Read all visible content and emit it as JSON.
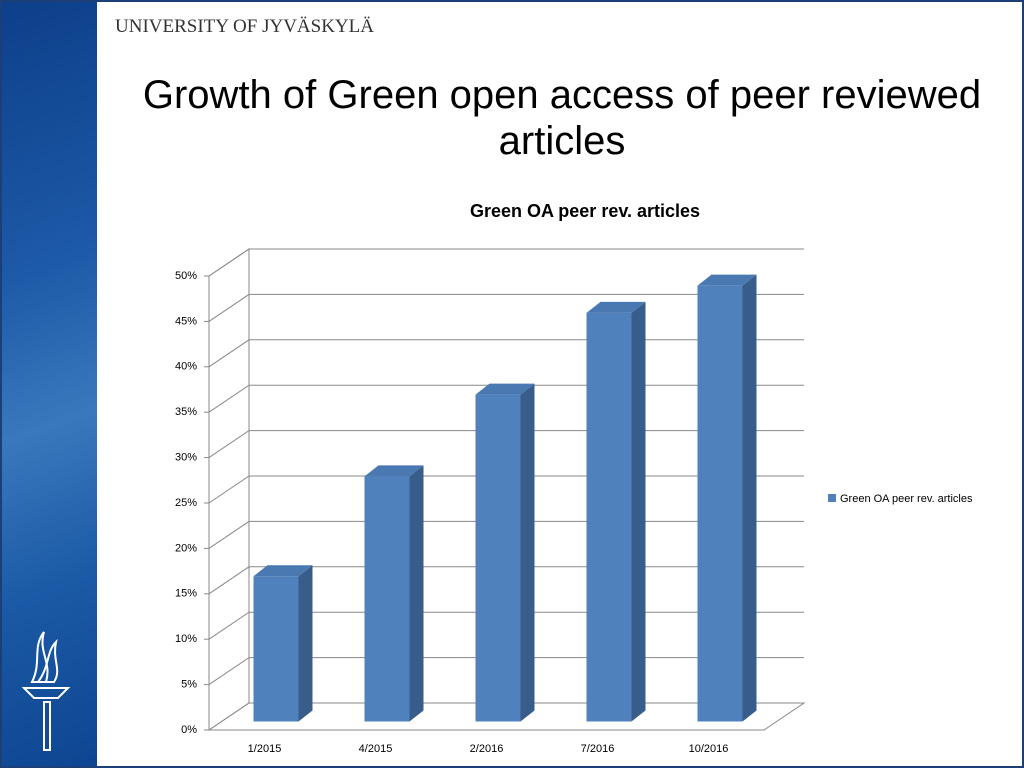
{
  "header": "UNIVERSITY OF JYVÄSKYLÄ",
  "slide_title": "Growth of Green open access of peer reviewed articles",
  "chart_data": {
    "type": "bar3d",
    "title": "Green OA peer rev. articles",
    "categories": [
      "1/2015",
      "4/2015",
      "2/2016",
      "7/2016",
      "10/2016"
    ],
    "series": [
      {
        "name": "Green OA peer rev. articles",
        "color": "#4f81bd",
        "values": [
          16,
          27,
          36,
          45,
          48
        ]
      }
    ],
    "ylim": [
      0,
      50
    ],
    "yticks": [
      {
        "value": 0,
        "label": "0%"
      },
      {
        "value": 5,
        "label": "5%"
      },
      {
        "value": 10,
        "label": "10%"
      },
      {
        "value": 15,
        "label": "15%"
      },
      {
        "value": 20,
        "label": "20%"
      },
      {
        "value": 25,
        "label": "25%"
      },
      {
        "value": 30,
        "label": "30%"
      },
      {
        "value": 35,
        "label": "35%"
      },
      {
        "value": 40,
        "label": "40%"
      },
      {
        "value": 45,
        "label": "45%"
      },
      {
        "value": 50,
        "label": "50%"
      }
    ],
    "grid": true,
    "legend": "right"
  }
}
